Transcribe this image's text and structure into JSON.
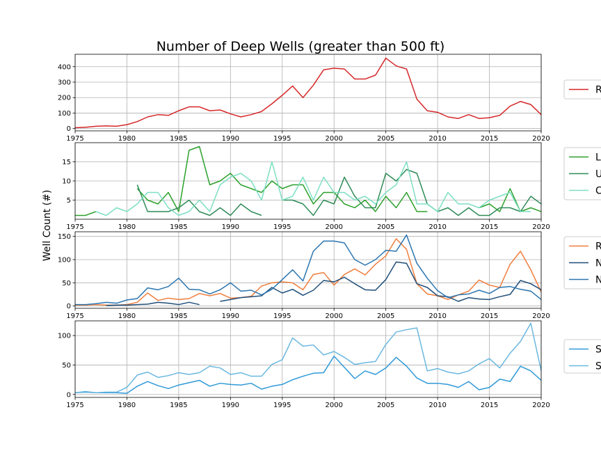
{
  "title": "Number of Deep Wells (greater than 500 ft)",
  "ylabel": "Well Count (#)",
  "colors": {
    "red": "#d62728",
    "green_light": "#2ca02c",
    "green_dark": "#2e8b57",
    "cyan": "#7ddfc3",
    "orange": "#f07d3c",
    "navy": "#1f4e79",
    "blue_mid": "#2a75b0",
    "sky": "#2f9ad8",
    "sky_light": "#6ab8e0"
  },
  "chart_data": [
    {
      "type": "line",
      "xlim": [
        1975,
        2020
      ],
      "ylim": [
        -15,
        480
      ],
      "xticks": [
        "1975",
        "1980",
        "1985",
        "1990",
        "1995",
        "2000",
        "2005",
        "2010",
        "2015",
        "2020"
      ],
      "yticks": [
        "0",
        "100",
        "200",
        "300",
        "400"
      ],
      "grid": true,
      "legend_placement": "right",
      "series": [
        {
          "name": "R",
          "color": "red",
          "x": [
            1975,
            1976,
            1977,
            1978,
            1979,
            1980,
            1981,
            1982,
            1983,
            1984,
            1985,
            1986,
            1987,
            1988,
            1989,
            1990,
            1991,
            1992,
            1993,
            1994,
            1995,
            1996,
            1997,
            1998,
            1999,
            2000,
            2001,
            2002,
            2003,
            2004,
            2005,
            2006,
            2007,
            2008,
            2009,
            2010,
            2011,
            2012,
            2013,
            2014,
            2015,
            2016,
            2017,
            2018,
            2019,
            2020
          ],
          "values": [
            5,
            8,
            15,
            17,
            15,
            25,
            45,
            75,
            90,
            85,
            115,
            140,
            140,
            115,
            120,
            95,
            75,
            90,
            110,
            160,
            215,
            275,
            200,
            280,
            380,
            390,
            385,
            320,
            320,
            345,
            455,
            405,
            385,
            190,
            115,
            105,
            75,
            65,
            90,
            65,
            70,
            85,
            145,
            175,
            155,
            90
          ]
        }
      ]
    },
    {
      "type": "line",
      "xlim": [
        1975,
        2020
      ],
      "ylim": [
        0,
        20
      ],
      "xticks": [
        "1975",
        "1980",
        "1985",
        "1990",
        "1995",
        "2000",
        "2005",
        "2010",
        "2015",
        "2020"
      ],
      "yticks": [
        "5",
        "10",
        "15"
      ],
      "grid": true,
      "legend_placement": "right",
      "series": [
        {
          "name": "L",
          "color": "green_light",
          "x": [
            1975,
            1976,
            1977,
            1978,
            1979,
            1980,
            1981,
            1982,
            1983,
            1984,
            1985,
            1986,
            1987,
            1988,
            1989,
            1990,
            1991,
            1992,
            1993,
            1994,
            1995,
            1996,
            1997,
            1998,
            1999,
            2000,
            2001,
            2002,
            2003,
            2004,
            2005,
            2006,
            2007,
            2008,
            2009,
            null,
            2014,
            2015,
            2016,
            2017,
            2018,
            2019,
            2020
          ],
          "values": [
            1,
            1,
            2,
            null,
            null,
            null,
            8,
            5,
            4,
            7,
            2,
            18,
            19,
            9,
            10,
            12,
            9,
            8,
            7,
            10,
            8,
            9,
            9,
            4,
            7,
            7,
            4,
            3,
            5,
            2,
            6,
            3,
            7,
            2,
            2,
            null,
            3,
            4,
            2,
            8,
            2,
            3,
            2
          ]
        },
        {
          "name": "U",
          "color": "green_dark",
          "x": [
            1981,
            1982,
            1983,
            1984,
            1985,
            1986,
            1987,
            1988,
            1989,
            1990,
            1991,
            1992,
            1993,
            null,
            1995,
            1996,
            1997,
            1998,
            1999,
            2000,
            2001,
            2002,
            2003,
            2004,
            2005,
            2006,
            2007,
            2008,
            2009,
            2010,
            2011,
            2012,
            2013,
            2014,
            2015,
            2016,
            2017,
            2018,
            2019,
            2020
          ],
          "values": [
            9,
            2,
            2,
            2,
            3,
            5,
            2,
            1,
            3,
            1,
            4,
            2,
            1,
            null,
            5,
            5,
            4,
            1,
            5,
            4,
            11,
            6,
            3,
            3,
            12,
            10,
            13,
            12,
            4,
            2,
            3,
            1,
            3,
            1,
            1,
            3,
            3,
            2,
            6,
            4
          ]
        },
        {
          "name": "C",
          "color": "cyan",
          "x": [
            1977,
            1978,
            1979,
            1980,
            1981,
            1982,
            1983,
            1984,
            1985,
            1986,
            1987,
            1988,
            1989,
            1990,
            1991,
            1992,
            1993,
            1994,
            1995,
            1996,
            1997,
            1998,
            1999,
            2000,
            2001,
            2002,
            2003,
            2004,
            2005,
            2006,
            2007,
            2008,
            2009,
            2010,
            2011,
            2012,
            2013,
            2014,
            2015,
            2016,
            2017,
            2018,
            2019
          ],
          "values": [
            2,
            1,
            3,
            2,
            4,
            7,
            7,
            3,
            1,
            2,
            5,
            2,
            9,
            11,
            12,
            10,
            5,
            15,
            5,
            6,
            11,
            5,
            11,
            7,
            7,
            5,
            6,
            4,
            7,
            9,
            15,
            4,
            4,
            2,
            7,
            4,
            4,
            3,
            5,
            6,
            7,
            2,
            2
          ]
        }
      ]
    },
    {
      "type": "line",
      "xlim": [
        1975,
        2020
      ],
      "ylim": [
        -5,
        160
      ],
      "xticks": [
        "1975",
        "1980",
        "1985",
        "1990",
        "1995",
        "2000",
        "2005",
        "2010",
        "2015",
        "2020"
      ],
      "yticks": [
        "0",
        "50",
        "100",
        "150"
      ],
      "grid": true,
      "legend_placement": "right",
      "series": [
        {
          "name": "R",
          "color": "orange",
          "x": [
            1975,
            1976,
            1977,
            1978,
            1979,
            1980,
            1981,
            1982,
            1983,
            1984,
            1985,
            1986,
            1987,
            1988,
            1989,
            1990,
            1991,
            1992,
            1993,
            1994,
            1995,
            1996,
            1997,
            1998,
            1999,
            2000,
            2001,
            2002,
            2003,
            2004,
            2005,
            2006,
            2007,
            2008,
            2009,
            2010,
            2011,
            2012,
            2013,
            2014,
            2015,
            2016,
            2017,
            2018,
            2019,
            2020
          ],
          "values": [
            2,
            2,
            3,
            2,
            2,
            3,
            8,
            28,
            12,
            17,
            14,
            16,
            27,
            22,
            27,
            17,
            18,
            21,
            43,
            50,
            52,
            50,
            35,
            68,
            72,
            45,
            68,
            80,
            67,
            90,
            108,
            145,
            122,
            48,
            26,
            22,
            14,
            24,
            32,
            56,
            45,
            40,
            90,
            118,
            78,
            30
          ]
        },
        {
          "name": "N",
          "color": "navy",
          "x": [
            1978,
            1979,
            1980,
            1981,
            1982,
            1983,
            1984,
            1985,
            1986,
            1987,
            null,
            1989,
            1990,
            1991,
            1992,
            1993,
            1994,
            1995,
            1996,
            1997,
            1998,
            1999,
            2000,
            2001,
            2002,
            2003,
            2004,
            2005,
            2006,
            2007,
            2008,
            2009,
            2010,
            2011,
            2012,
            2013,
            2014,
            2015,
            2016,
            2017,
            2018,
            2019,
            2020
          ],
          "values": [
            1,
            2,
            2,
            3,
            4,
            8,
            6,
            3,
            8,
            3,
            null,
            10,
            14,
            18,
            20,
            22,
            40,
            28,
            36,
            23,
            34,
            55,
            52,
            62,
            48,
            35,
            34,
            57,
            95,
            92,
            48,
            40,
            22,
            20,
            10,
            18,
            15,
            14,
            20,
            25,
            55,
            48,
            35
          ]
        },
        {
          "name": "N",
          "color": "blue_mid",
          "x": [
            1975,
            1976,
            1977,
            1978,
            1979,
            1980,
            1981,
            1982,
            1983,
            1984,
            1985,
            1986,
            1987,
            1988,
            1989,
            1990,
            1991,
            1992,
            1993,
            1994,
            1995,
            1996,
            1997,
            1998,
            1999,
            2000,
            2001,
            2002,
            2003,
            2004,
            2005,
            2006,
            2007,
            2008,
            2009,
            2010,
            2011,
            2012,
            2013,
            2014,
            2015,
            2016,
            2017,
            2018,
            2019,
            2020
          ],
          "values": [
            3,
            3,
            5,
            8,
            6,
            13,
            16,
            39,
            35,
            42,
            60,
            36,
            35,
            26,
            35,
            50,
            32,
            34,
            24,
            36,
            57,
            78,
            54,
            118,
            140,
            140,
            136,
            100,
            88,
            100,
            120,
            118,
            153,
            92,
            60,
            33,
            18,
            24,
            26,
            34,
            27,
            40,
            42,
            36,
            32,
            14
          ]
        }
      ]
    },
    {
      "type": "line",
      "xlim": [
        1975,
        2020
      ],
      "ylim": [
        -5,
        125
      ],
      "xticks": [
        "1975",
        "1980",
        "1985",
        "1990",
        "1995",
        "2000",
        "2005",
        "2010",
        "2015",
        "2020"
      ],
      "yticks": [
        "0",
        "50",
        "100"
      ],
      "grid": true,
      "legend_placement": "right",
      "series": [
        {
          "name": "S",
          "color": "sky",
          "x": [
            1975,
            1976,
            1977,
            1978,
            1979,
            1980,
            1981,
            1982,
            1983,
            1984,
            1985,
            1986,
            1987,
            1988,
            1989,
            1990,
            1991,
            1992,
            1993,
            1994,
            1995,
            1996,
            1997,
            1998,
            1999,
            2000,
            2001,
            2002,
            2003,
            2004,
            2005,
            2006,
            2007,
            2008,
            2009,
            2010,
            2011,
            2012,
            2013,
            2014,
            2015,
            2016,
            2017,
            2018,
            2019,
            2020
          ],
          "values": [
            3,
            4,
            3,
            3,
            3,
            2,
            14,
            22,
            15,
            10,
            16,
            20,
            24,
            14,
            19,
            17,
            16,
            19,
            9,
            14,
            17,
            25,
            31,
            36,
            37,
            65,
            46,
            27,
            40,
            34,
            45,
            63,
            48,
            28,
            19,
            19,
            17,
            12,
            22,
            8,
            12,
            26,
            22,
            48,
            40,
            24
          ]
        },
        {
          "name": "S",
          "color": "sky_light",
          "x": [
            1975,
            1976,
            1977,
            1978,
            1979,
            1980,
            1981,
            1982,
            1983,
            1984,
            1985,
            1986,
            1987,
            1988,
            1989,
            1990,
            1991,
            1992,
            1993,
            1994,
            1995,
            1996,
            1997,
            1998,
            1999,
            2000,
            2001,
            2002,
            2003,
            2004,
            2005,
            2006,
            2007,
            2008,
            2009,
            2010,
            2011,
            2012,
            2013,
            2014,
            2015,
            2016,
            2017,
            2018,
            2019,
            2020
          ],
          "values": [
            3,
            5,
            3,
            4,
            4,
            12,
            33,
            38,
            29,
            32,
            37,
            34,
            37,
            48,
            45,
            34,
            37,
            31,
            31,
            51,
            59,
            96,
            82,
            84,
            67,
            73,
            63,
            51,
            54,
            56,
            85,
            106,
            110,
            113,
            40,
            44,
            38,
            35,
            40,
            52,
            61,
            45,
            70,
            90,
            121,
            40
          ]
        }
      ]
    }
  ]
}
